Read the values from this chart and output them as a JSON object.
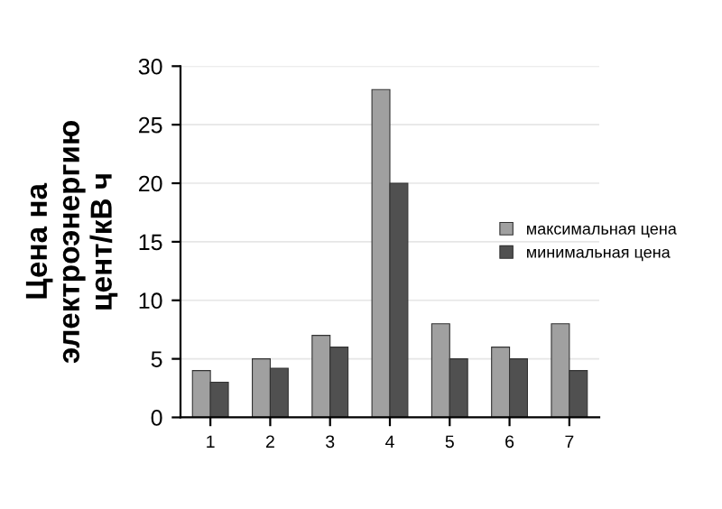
{
  "chart_data": {
    "type": "bar",
    "ylabel": "Цена на\nэлектроэнергию\nцент/кВ ч",
    "categories": [
      "1",
      "2",
      "3",
      "4",
      "5",
      "6",
      "7"
    ],
    "series": [
      {
        "name": "максимальная цена",
        "color": "#a0a0a0",
        "values": [
          4,
          5,
          7,
          28,
          8,
          6,
          8
        ]
      },
      {
        "name": "минимальная цена",
        "color": "#505050",
        "values": [
          3,
          4.2,
          6,
          20,
          5,
          5,
          4
        ]
      }
    ],
    "ylim": [
      0,
      30
    ],
    "yticks": [
      0,
      5,
      10,
      15,
      20,
      25,
      30
    ],
    "grid": "y",
    "legend": "right"
  }
}
